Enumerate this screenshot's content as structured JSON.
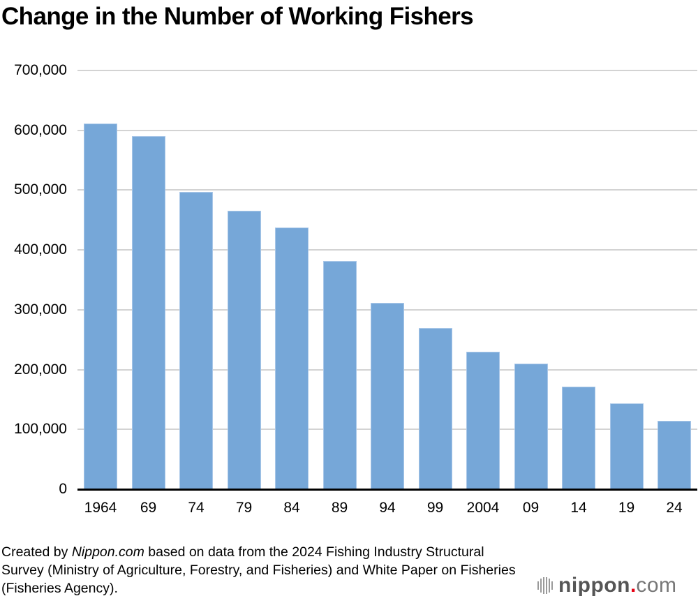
{
  "title": "Change in the Number of Working Fishers",
  "footer": {
    "prefix": "Created by ",
    "source_name": "Nippon.com",
    "suffix": " based on data from the 2024 Fishing Industry Structural Survey (Ministry of Agriculture, Forestry, and Fisheries) and White Paper on Fisheries (Fisheries Agency)."
  },
  "logo": {
    "name": "nippon",
    "dot": ".",
    "tld": "com",
    "icon": "striped-circle-icon",
    "dot_color": "#e60012"
  },
  "colors": {
    "bar": "#76a7d8",
    "grid": "#d3d3d3",
    "axis": "#000000"
  },
  "chart_data": {
    "type": "bar",
    "title": "Change in the Number of Working Fishers",
    "xlabel": "",
    "ylabel": "",
    "categories": [
      "1964",
      "69",
      "74",
      "79",
      "84",
      "89",
      "94",
      "99",
      "2004",
      "09",
      "14",
      "19",
      "24"
    ],
    "values": [
      611000,
      590000,
      497000,
      466000,
      437000,
      381000,
      312000,
      269000,
      230000,
      210000,
      172000,
      144000,
      114000
    ],
    "ylim": [
      0,
      700000
    ],
    "yticks": [
      0,
      100000,
      200000,
      300000,
      400000,
      500000,
      600000,
      700000
    ],
    "ytick_labels": [
      "0",
      "100,000",
      "200,000",
      "300,000",
      "400,000",
      "500,000",
      "600,000",
      "700,000"
    ],
    "grid": true,
    "legend": null
  }
}
